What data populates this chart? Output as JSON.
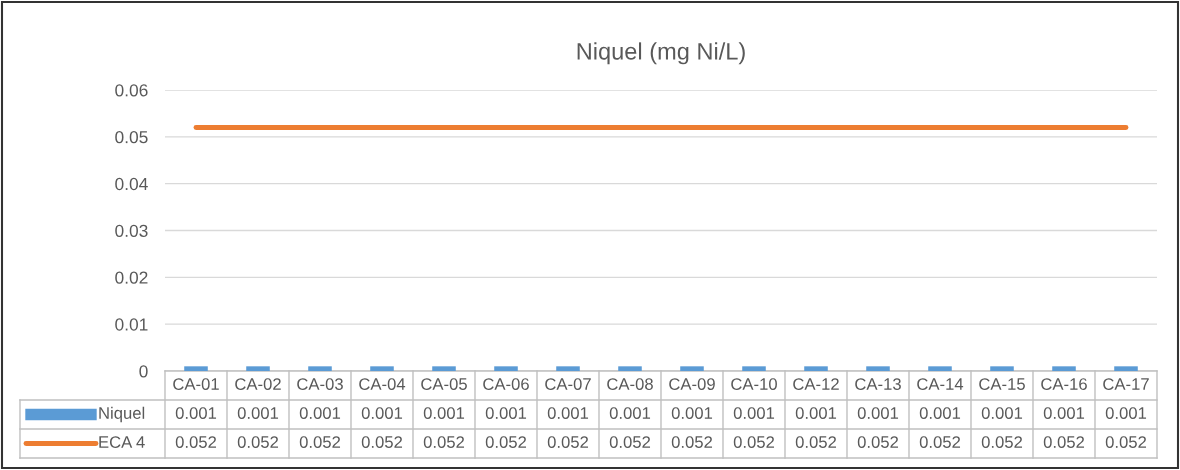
{
  "chart_data": {
    "type": "bar",
    "title": "Niquel (mg Ni/L)",
    "categories": [
      "CA-01",
      "CA-02",
      "CA-03",
      "CA-04",
      "CA-05",
      "CA-06",
      "CA-07",
      "CA-08",
      "CA-09",
      "CA-10",
      "CA-12",
      "CA-13",
      "CA-14",
      "CA-15",
      "CA-16",
      "CA-17"
    ],
    "series": [
      {
        "name": "Niquel",
        "color": "#5b9bd5",
        "values": [
          0.001,
          0.001,
          0.001,
          0.001,
          0.001,
          0.001,
          0.001,
          0.001,
          0.001,
          0.001,
          0.001,
          0.001,
          0.001,
          0.001,
          0.001,
          0.001
        ]
      },
      {
        "name": "ECA 4",
        "type": "line",
        "color": "#ed7d31",
        "values": [
          0.052,
          0.052,
          0.052,
          0.052,
          0.052,
          0.052,
          0.052,
          0.052,
          0.052,
          0.052,
          0.052,
          0.052,
          0.052,
          0.052,
          0.052,
          0.052
        ]
      }
    ],
    "ylim": [
      0,
      0.06
    ],
    "yticks": [
      0,
      0.01,
      0.02,
      0.03,
      0.04,
      0.05,
      0.06
    ],
    "grid": "y",
    "legend": "bottom",
    "data_labels": true
  }
}
